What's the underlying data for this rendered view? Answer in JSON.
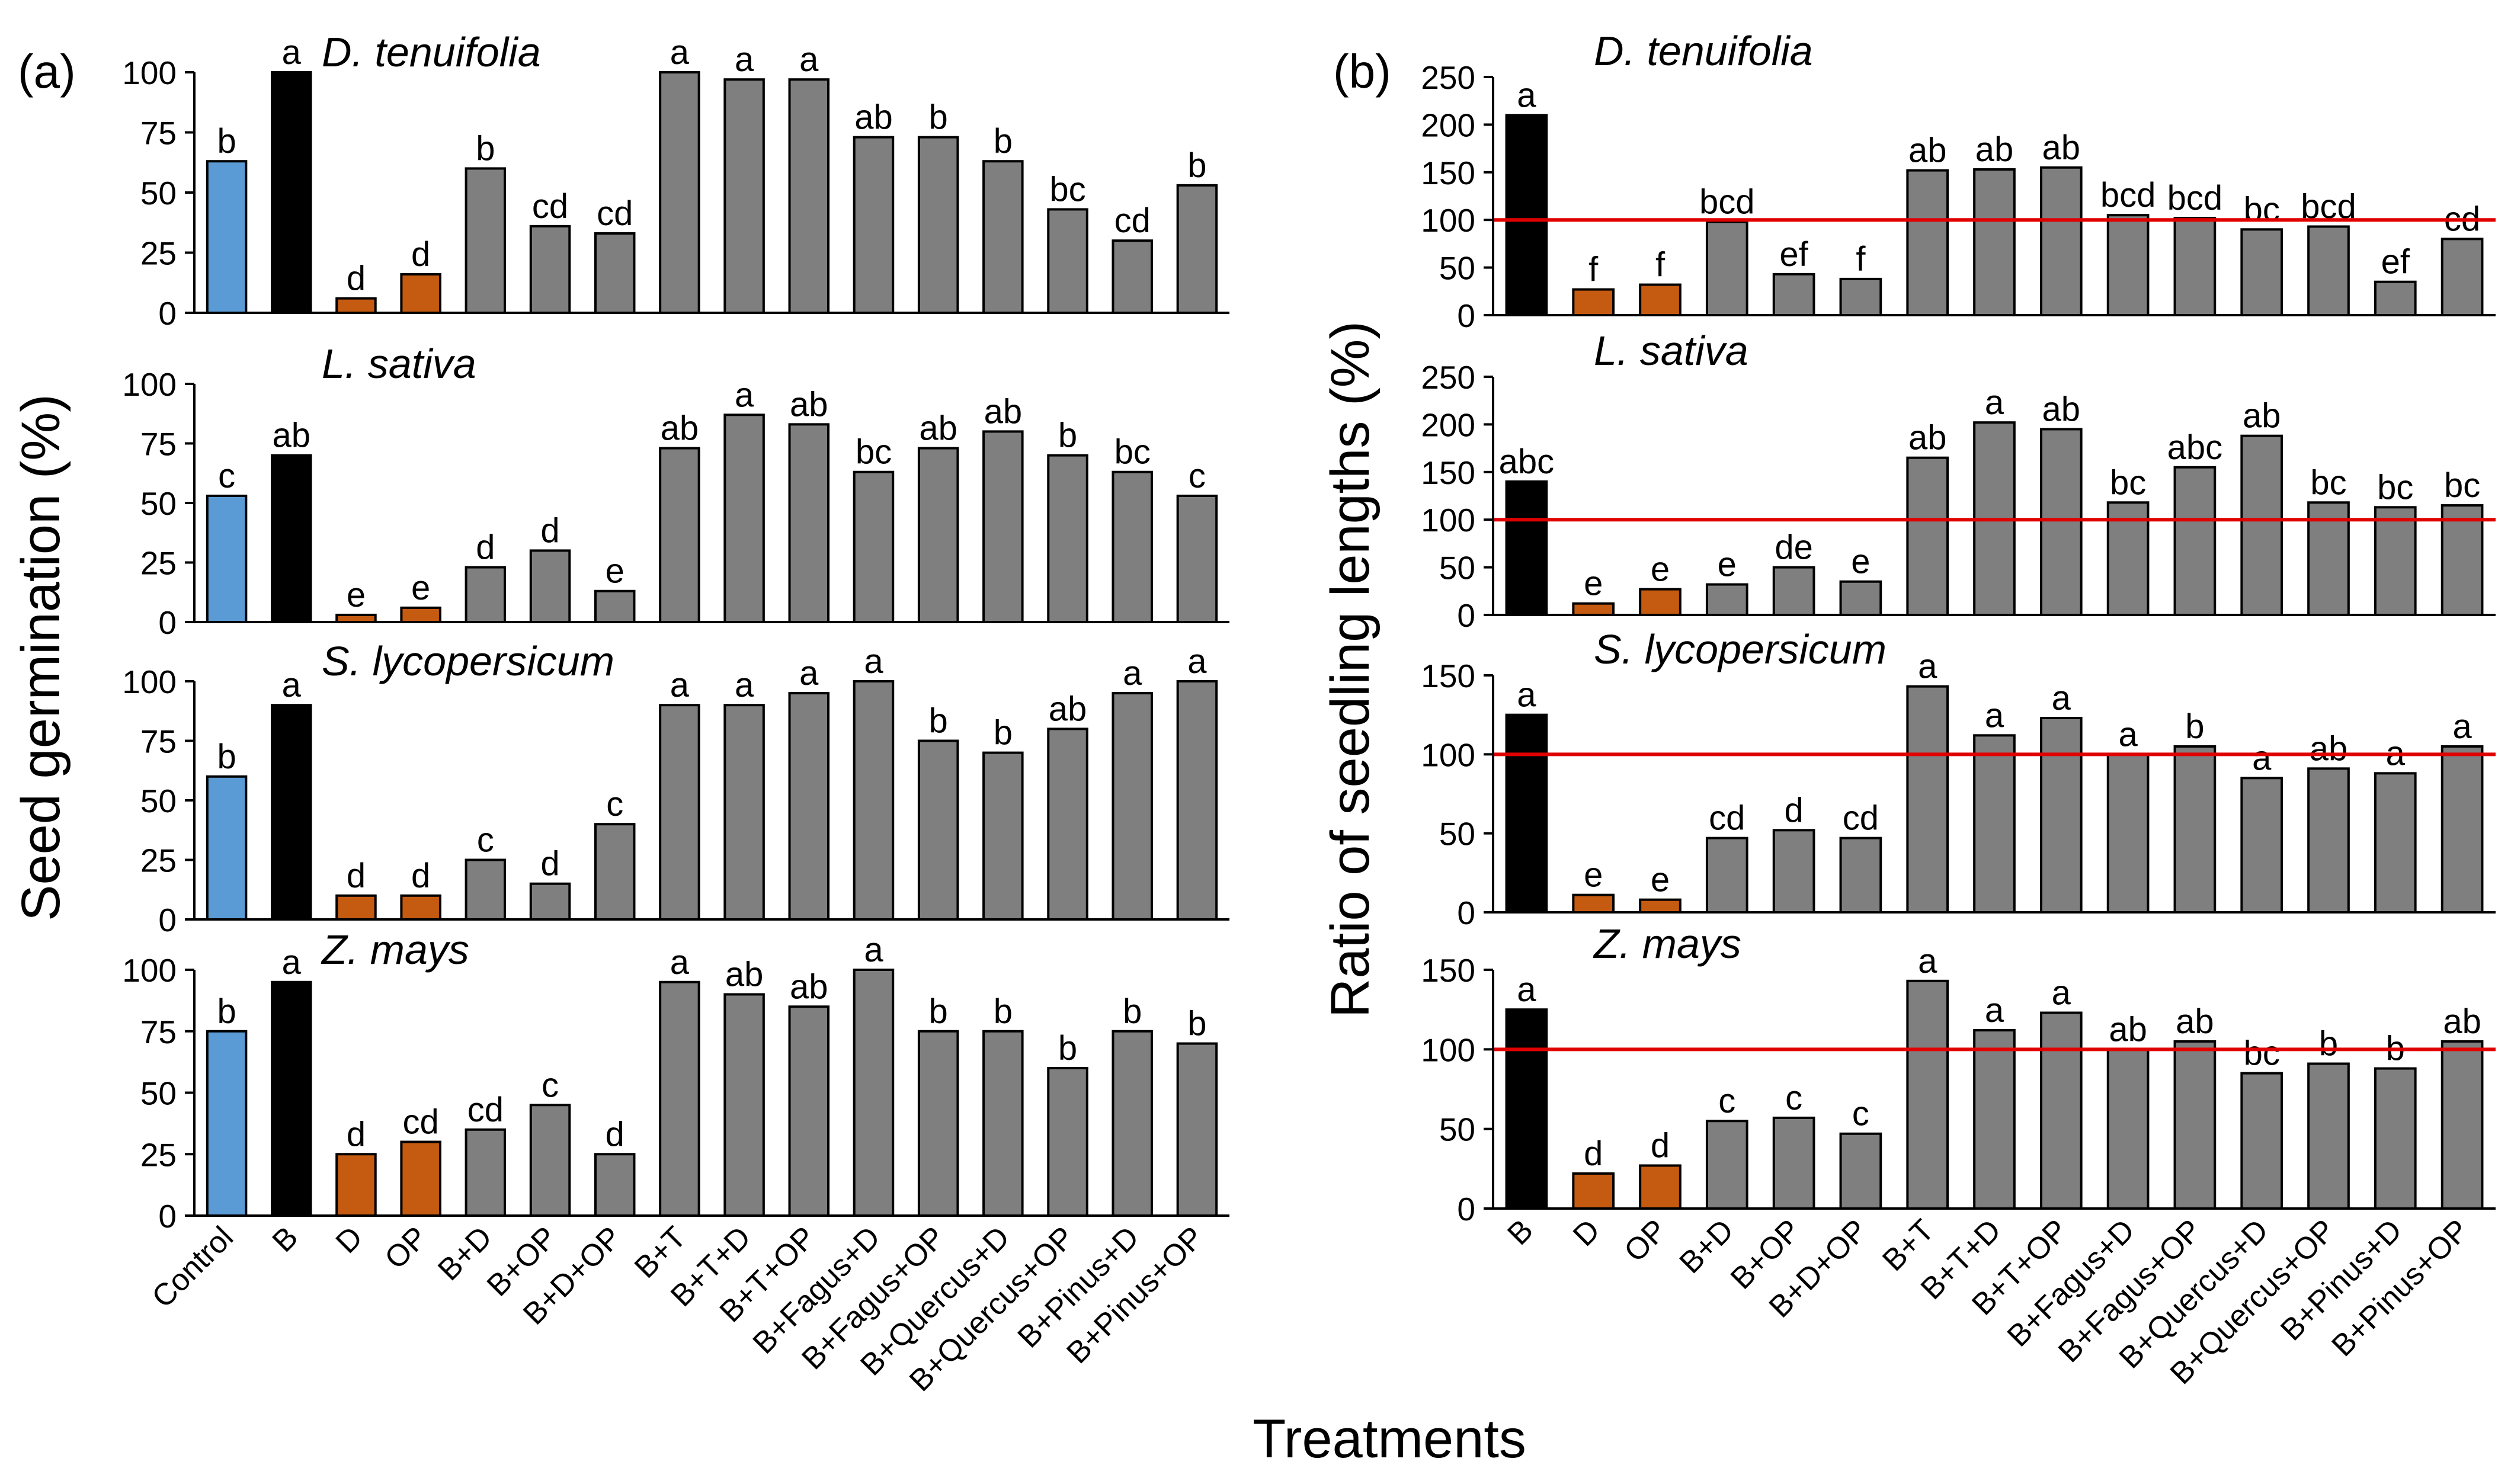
{
  "panel_labels": {
    "a": "(a)",
    "b": "(b)"
  },
  "ylabel_a": "Seed germination (%)",
  "ylabel_b": "Ratio of seedling lengths (%)",
  "xlabel": "Treatments",
  "colors": {
    "control": "#5b9bd5",
    "black": "#000000",
    "orange": "#c55a11",
    "gray": "#7f7f7f",
    "reference": "#e00000",
    "axis": "#000000"
  },
  "chart_data": [
    {
      "panel": "a",
      "type": "bar",
      "title": "D. tenuifolia",
      "ylim": [
        0,
        100
      ],
      "yticks": [
        0,
        25,
        50,
        75,
        100
      ],
      "categories": [
        "Control",
        "B",
        "D",
        "OP",
        "B+D",
        "B+OP",
        "B+D+OP",
        "B+T",
        "B+T+D",
        "B+T+OP",
        "B+Fagus+D",
        "B+Fagus+OP",
        "B+Quercus+D",
        "B+Quercus+OP",
        "B+Pinus+D",
        "B+Pinus+OP"
      ],
      "values": [
        63,
        100,
        6,
        16,
        60,
        36,
        33,
        100,
        97,
        97,
        73,
        73,
        63,
        43,
        30,
        53
      ],
      "letters": [
        "b",
        "a",
        "d",
        "d",
        "b",
        "cd",
        "cd",
        "a",
        "a",
        "a",
        "ab",
        "b",
        "b",
        "bc",
        "cd",
        "b"
      ],
      "show_xlabels": false
    },
    {
      "panel": "a",
      "type": "bar",
      "title": "L. sativa",
      "ylim": [
        0,
        100
      ],
      "yticks": [
        0,
        25,
        50,
        75,
        100
      ],
      "categories": [
        "Control",
        "B",
        "D",
        "OP",
        "B+D",
        "B+OP",
        "B+D+OP",
        "B+T",
        "B+T+D",
        "B+T+OP",
        "B+Fagus+D",
        "B+Fagus+OP",
        "B+Quercus+D",
        "B+Quercus+OP",
        "B+Pinus+D",
        "B+Pinus+OP"
      ],
      "values": [
        53,
        70,
        3,
        6,
        23,
        30,
        13,
        73,
        87,
        83,
        63,
        73,
        80,
        70,
        63,
        53
      ],
      "letters": [
        "c",
        "ab",
        "e",
        "e",
        "d",
        "d",
        "e",
        "ab",
        "a",
        "ab",
        "bc",
        "ab",
        "ab",
        "b",
        "bc",
        "c"
      ],
      "show_xlabels": false
    },
    {
      "panel": "a",
      "type": "bar",
      "title": "S. lycopersicum",
      "ylim": [
        0,
        100
      ],
      "yticks": [
        0,
        25,
        50,
        75,
        100
      ],
      "categories": [
        "Control",
        "B",
        "D",
        "OP",
        "B+D",
        "B+OP",
        "B+D+OP",
        "B+T",
        "B+T+D",
        "B+T+OP",
        "B+Fagus+D",
        "B+Fagus+OP",
        "B+Quercus+D",
        "B+Quercus+OP",
        "B+Pinus+D",
        "B+Pinus+OP"
      ],
      "values": [
        60,
        90,
        10,
        10,
        25,
        15,
        40,
        90,
        90,
        95,
        100,
        75,
        70,
        80,
        95,
        100
      ],
      "letters": [
        "b",
        "a",
        "d",
        "d",
        "c",
        "d",
        "c",
        "a",
        "a",
        "a",
        "a",
        "b",
        "b",
        "ab",
        "a",
        "a"
      ],
      "show_xlabels": false
    },
    {
      "panel": "a",
      "type": "bar",
      "title": "Z. mays",
      "ylim": [
        0,
        100
      ],
      "yticks": [
        0,
        25,
        50,
        75,
        100
      ],
      "categories": [
        "Control",
        "B",
        "D",
        "OP",
        "B+D",
        "B+OP",
        "B+D+OP",
        "B+T",
        "B+T+D",
        "B+T+OP",
        "B+Fagus+D",
        "B+Fagus+OP",
        "B+Quercus+D",
        "B+Quercus+OP",
        "B+Pinus+D",
        "B+Pinus+OP"
      ],
      "values": [
        75,
        95,
        25,
        30,
        35,
        45,
        25,
        95,
        90,
        85,
        100,
        75,
        75,
        60,
        75,
        70
      ],
      "letters": [
        "b",
        "a",
        "d",
        "cd",
        "cd",
        "c",
        "d",
        "a",
        "ab",
        "ab",
        "a",
        "b",
        "b",
        "b",
        "b",
        "b"
      ],
      "show_xlabels": true
    },
    {
      "panel": "b",
      "type": "bar",
      "title": "D. tenuifolia",
      "ylim": [
        0,
        250
      ],
      "yticks": [
        0,
        50,
        100,
        150,
        200,
        250
      ],
      "reference_line": 100,
      "categories": [
        "B",
        "D",
        "OP",
        "B+D",
        "B+OP",
        "B+D+OP",
        "B+T",
        "B+T+D",
        "B+T+OP",
        "B+Fagus+D",
        "B+Fagus+OP",
        "B+Quercus+D",
        "B+Quercus+OP",
        "B+Pinus+D",
        "B+Pinus+OP"
      ],
      "values": [
        210,
        27,
        32,
        98,
        43,
        38,
        152,
        153,
        155,
        105,
        102,
        90,
        93,
        35,
        80
      ],
      "letters": [
        "a",
        "f",
        "f",
        "bcd",
        "ef",
        "f",
        "ab",
        "ab",
        "ab",
        "bcd",
        "bcd",
        "bc",
        "bcd",
        "ef",
        "cd"
      ],
      "show_xlabels": false
    },
    {
      "panel": "b",
      "type": "bar",
      "title": "L. sativa",
      "ylim": [
        0,
        250
      ],
      "yticks": [
        0,
        50,
        100,
        150,
        200,
        250
      ],
      "reference_line": 100,
      "categories": [
        "B",
        "D",
        "OP",
        "B+D",
        "B+OP",
        "B+D+OP",
        "B+T",
        "B+T+D",
        "B+T+OP",
        "B+Fagus+D",
        "B+Fagus+OP",
        "B+Quercus+D",
        "B+Quercus+OP",
        "B+Pinus+D",
        "B+Pinus+OP"
      ],
      "values": [
        140,
        12,
        27,
        32,
        50,
        35,
        165,
        202,
        195,
        118,
        155,
        188,
        118,
        113,
        115
      ],
      "letters": [
        "abc",
        "e",
        "e",
        "e",
        "de",
        "e",
        "ab",
        "a",
        "ab",
        "bc",
        "abc",
        "ab",
        "bc",
        "bc",
        "bc"
      ],
      "show_xlabels": false
    },
    {
      "panel": "b",
      "type": "bar",
      "title": "S. lycopersicum",
      "ylim": [
        0,
        150
      ],
      "yticks": [
        0,
        50,
        100,
        150
      ],
      "reference_line": 100,
      "categories": [
        "B",
        "D",
        "OP",
        "B+D",
        "B+OP",
        "B+D+OP",
        "B+T",
        "B+T+D",
        "B+T+OP",
        "B+Fagus+D",
        "B+Fagus+OP",
        "B+Quercus+D",
        "B+Quercus+OP",
        "B+Pinus+D",
        "B+Pinus+OP"
      ],
      "values": [
        125,
        11,
        8,
        47,
        52,
        47,
        143,
        112,
        123,
        100,
        105,
        85,
        91,
        88,
        105
      ],
      "letters": [
        "a",
        "e",
        "e",
        "cd",
        "d",
        "cd",
        "a",
        "a",
        "a",
        "a",
        "b",
        "a",
        "ab",
        "a",
        "a"
      ],
      "show_xlabels": false
    },
    {
      "panel": "b",
      "type": "bar",
      "title": "Z. mays",
      "ylim": [
        0,
        150
      ],
      "yticks": [
        0,
        50,
        100,
        150
      ],
      "reference_line": 100,
      "categories": [
        "B",
        "D",
        "OP",
        "B+D",
        "B+OP",
        "B+D+OP",
        "B+T",
        "B+T+D",
        "B+T+OP",
        "B+Fagus+D",
        "B+Fagus+OP",
        "B+Quercus+D",
        "B+Quercus+OP",
        "B+Pinus+D",
        "B+Pinus+OP"
      ],
      "values": [
        125,
        22,
        27,
        55,
        57,
        47,
        143,
        112,
        123,
        100,
        105,
        85,
        91,
        88,
        105
      ],
      "letters": [
        "a",
        "d",
        "d",
        "c",
        "c",
        "c",
        "a",
        "a",
        "a",
        "ab",
        "ab",
        "bc",
        "b",
        "b",
        "ab"
      ],
      "show_xlabels": true
    }
  ]
}
